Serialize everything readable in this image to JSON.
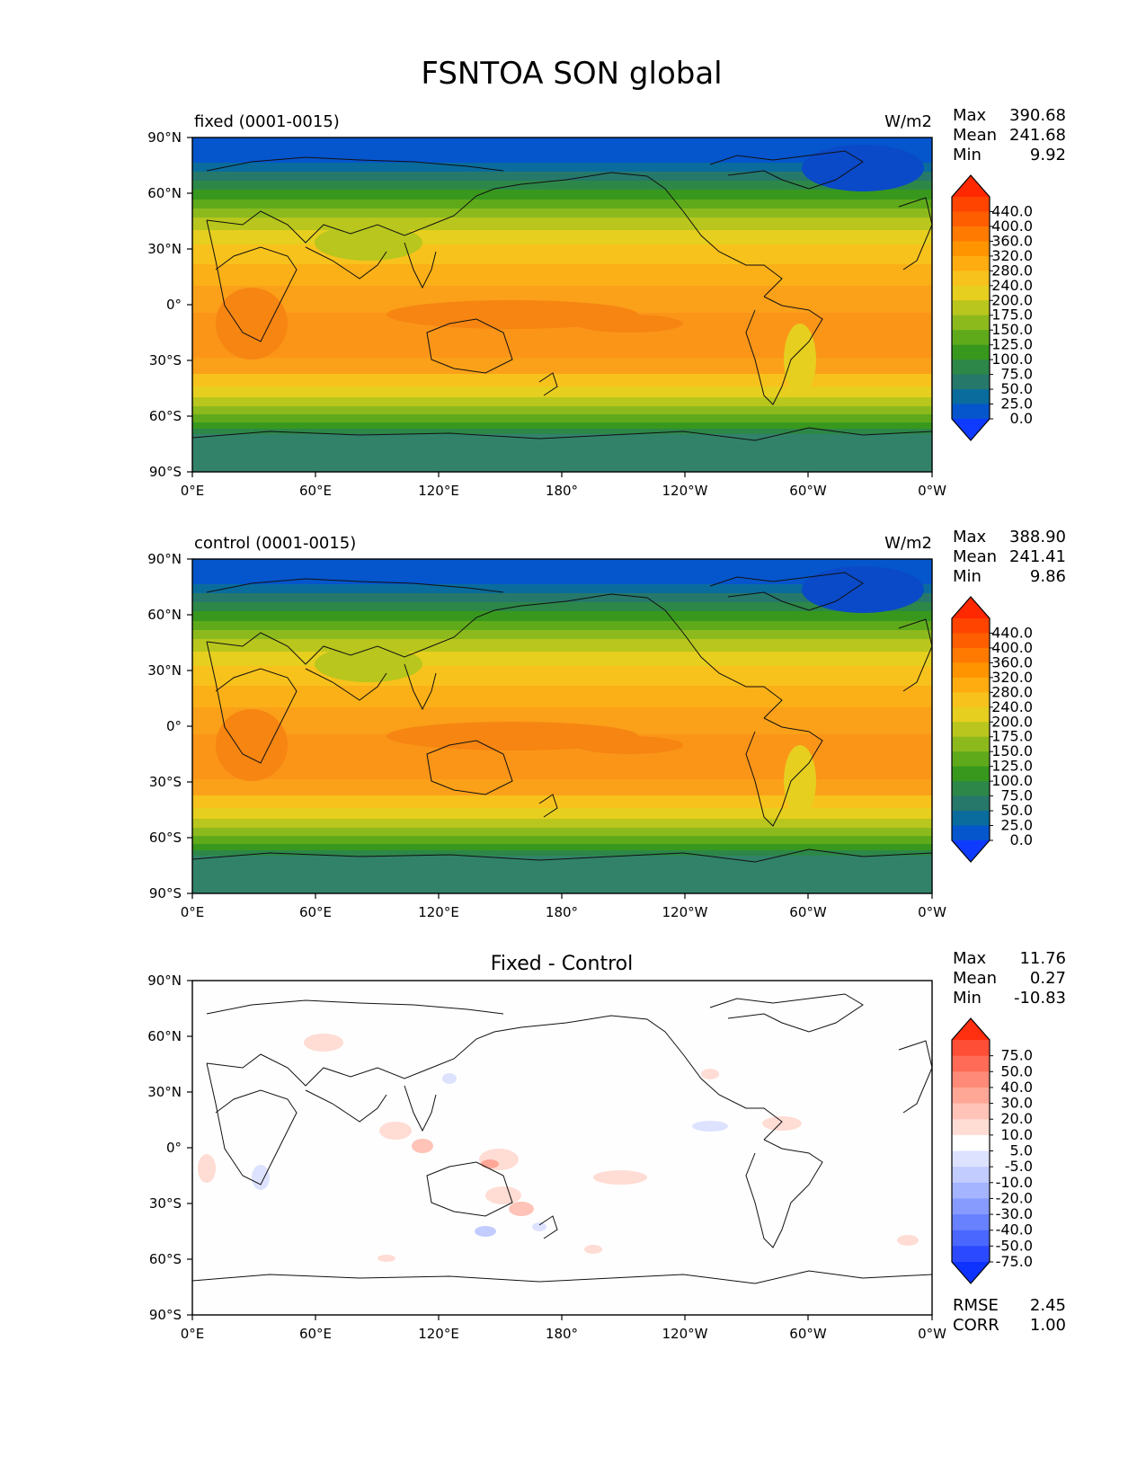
{
  "title": "FSNTOA SON global",
  "x_ticks": [
    "0°E",
    "60°E",
    "120°E",
    "180°",
    "120°W",
    "60°W",
    "0°W"
  ],
  "y_ticks": [
    "90°N",
    "60°N",
    "30°N",
    "0°",
    "30°S",
    "60°S",
    "90°S"
  ],
  "stat_labels": {
    "max": "Max",
    "mean": "Mean",
    "min": "Min",
    "rmse": "RMSE",
    "corr": "CORR"
  },
  "panels": [
    {
      "left_title": "fixed (0001-0015)",
      "center_title": "",
      "units": "W/m2",
      "stats": {
        "max": "390.68",
        "mean": "241.68",
        "min": "9.92"
      },
      "colorbar": {
        "labels": [
          "440.0",
          "400.0",
          "360.0",
          "320.0",
          "280.0",
          "240.0",
          "200.0",
          "175.0",
          "150.0",
          "125.0",
          "100.0",
          "75.0",
          "50.0",
          "25.0",
          "0.0"
        ],
        "colors": [
          "#ff2800",
          "#ff4400",
          "#ff5e00",
          "#ff7a00",
          "#ff9400",
          "#ffac10",
          "#f8c21c",
          "#e6cf1f",
          "#b8c61d",
          "#8cba1d",
          "#5faa1b",
          "#38981e",
          "#2d8748",
          "#26786a",
          "#0a6c9c",
          "#0555cc",
          "#0f3bff"
        ]
      }
    },
    {
      "left_title": "control (0001-0015)",
      "center_title": "",
      "units": "W/m2",
      "stats": {
        "max": "388.90",
        "mean": "241.41",
        "min": "9.86"
      },
      "colorbar": {
        "labels": [
          "440.0",
          "400.0",
          "360.0",
          "320.0",
          "280.0",
          "240.0",
          "200.0",
          "175.0",
          "150.0",
          "125.0",
          "100.0",
          "75.0",
          "50.0",
          "25.0",
          "0.0"
        ],
        "colors": [
          "#ff2800",
          "#ff4400",
          "#ff5e00",
          "#ff7a00",
          "#ff9400",
          "#ffac10",
          "#f8c21c",
          "#e6cf1f",
          "#b8c61d",
          "#8cba1d",
          "#5faa1b",
          "#38981e",
          "#2d8748",
          "#26786a",
          "#0a6c9c",
          "#0555cc",
          "#0f3bff"
        ]
      }
    },
    {
      "left_title": "",
      "center_title": "Fixed - Control",
      "units": "",
      "stats": {
        "max": "11.76",
        "mean": "0.27",
        "min": "-10.83",
        "rmse": "2.45",
        "corr": "1.00"
      },
      "colorbar": {
        "labels": [
          "75.0",
          "50.0",
          "40.0",
          "30.0",
          "20.0",
          "10.0",
          "5.0",
          "-5.0",
          "-10.0",
          "-20.0",
          "-30.0",
          "-40.0",
          "-50.0",
          "-75.0"
        ],
        "colors": [
          "#ff3010",
          "#ff4e36",
          "#ff6b57",
          "#ff8a78",
          "#ffa797",
          "#ffc3b7",
          "#ffdcd4",
          "#ffffff",
          "#dde2ff",
          "#c2ccff",
          "#a5b4ff",
          "#879bff",
          "#6881ff",
          "#4a67ff",
          "#2b4aff",
          "#0f33ff"
        ]
      }
    }
  ]
}
